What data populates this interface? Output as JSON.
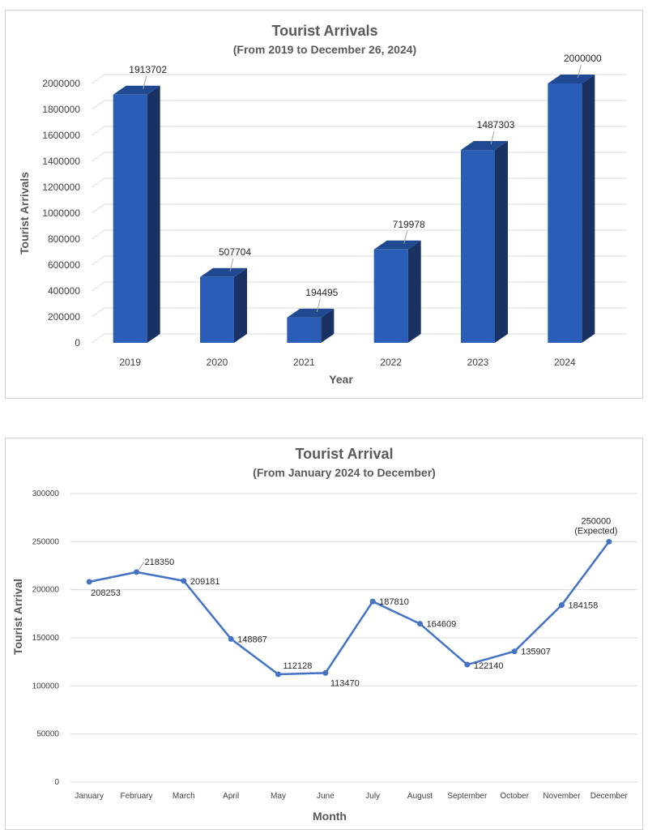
{
  "chart_data": [
    {
      "type": "bar",
      "title": "Tourist Arrivals",
      "subtitle": "(From 2019 to December 26, 2024)",
      "xlabel": "Year",
      "ylabel": "Tourist Arrivals",
      "categories": [
        "2019",
        "2020",
        "2021",
        "2022",
        "2023",
        "2024"
      ],
      "values": [
        1913702,
        507704,
        194495,
        719978,
        1487303,
        2000000
      ],
      "value_labels": [
        "1913702",
        "507704",
        "194495",
        "719978",
        "1487303",
        "2000000"
      ],
      "ylim": [
        0,
        2000000
      ],
      "yticks": [
        0,
        200000,
        400000,
        600000,
        800000,
        1000000,
        1200000,
        1400000,
        1600000,
        1800000,
        2000000
      ],
      "ytick_labels": [
        "0",
        "200000",
        "400000",
        "600000",
        "800000",
        "1000000",
        "1200000",
        "1400000",
        "1600000",
        "1800000",
        "2000000"
      ],
      "grid": true,
      "style": "3d",
      "colors": {
        "front": "#2a5db5",
        "top": "#1f4a92",
        "side": "#1a3263",
        "grid": "#d9d9d9"
      }
    },
    {
      "type": "line",
      "title": "Tourist Arrival",
      "subtitle": "(From January 2024 to December)",
      "xlabel": "Month",
      "ylabel": "Tourist Arrival",
      "categories": [
        "January",
        "February",
        "March",
        "April",
        "May",
        "June",
        "July",
        "August",
        "September",
        "October",
        "November",
        "December"
      ],
      "values": [
        208253,
        218350,
        209181,
        148867,
        112128,
        113470,
        187810,
        164609,
        122140,
        135907,
        184158,
        250000
      ],
      "value_labels": [
        "208253",
        "218350",
        "209181",
        "148867",
        "112128",
        "113470",
        "187810",
        "164609",
        "122140",
        "135907",
        "184158",
        "250000"
      ],
      "annotations": [
        "",
        "",
        "",
        "",
        "",
        "",
        "",
        "",
        "",
        "",
        "",
        "(Expected)"
      ],
      "ylim": [
        0,
        300000
      ],
      "yticks": [
        0,
        50000,
        100000,
        150000,
        200000,
        250000,
        300000
      ],
      "ytick_labels": [
        "0",
        "50000",
        "100000",
        "150000",
        "200000",
        "250000",
        "300000"
      ],
      "grid": true,
      "colors": {
        "line": "#4472c4",
        "grid": "#d9d9d9"
      }
    }
  ]
}
